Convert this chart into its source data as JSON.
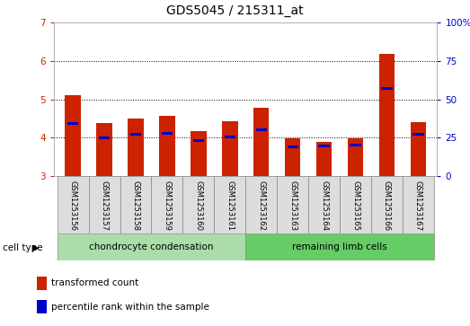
{
  "title": "GDS5045 / 215311_at",
  "samples": [
    "GSM1253156",
    "GSM1253157",
    "GSM1253158",
    "GSM1253159",
    "GSM1253160",
    "GSM1253161",
    "GSM1253162",
    "GSM1253163",
    "GSM1253164",
    "GSM1253165",
    "GSM1253166",
    "GSM1253167"
  ],
  "transformed_count": [
    5.1,
    4.38,
    4.5,
    4.56,
    4.18,
    4.42,
    4.78,
    3.98,
    3.88,
    3.98,
    6.2,
    4.4
  ],
  "percentile_rank": [
    4.38,
    4.0,
    4.08,
    4.12,
    3.93,
    4.02,
    4.2,
    3.76,
    3.78,
    3.82,
    5.28,
    4.08
  ],
  "ymin": 3,
  "ymax": 7,
  "yticks": [
    3,
    4,
    5,
    6,
    7
  ],
  "right_yticks": [
    0,
    25,
    50,
    75,
    100
  ],
  "right_yticklabels": [
    "0",
    "25",
    "50",
    "75",
    "100%"
  ],
  "left_tick_color": "#cc2200",
  "right_tick_color": "#0000cc",
  "bar_color": "#cc2200",
  "dot_color": "#0000cc",
  "group1_label": "chondrocyte condensation",
  "group2_label": "remaining limb cells",
  "group1_indices": [
    0,
    1,
    2,
    3,
    4,
    5
  ],
  "group2_indices": [
    6,
    7,
    8,
    9,
    10,
    11
  ],
  "group1_bg": "#aaddaa",
  "group2_bg": "#66cc66",
  "cell_type_label": "cell type",
  "legend1": "transformed count",
  "legend2": "percentile rank within the sample",
  "bar_width": 0.5,
  "xlabel_bg": "#dddddd",
  "grid_yticks": [
    4,
    5,
    6
  ]
}
